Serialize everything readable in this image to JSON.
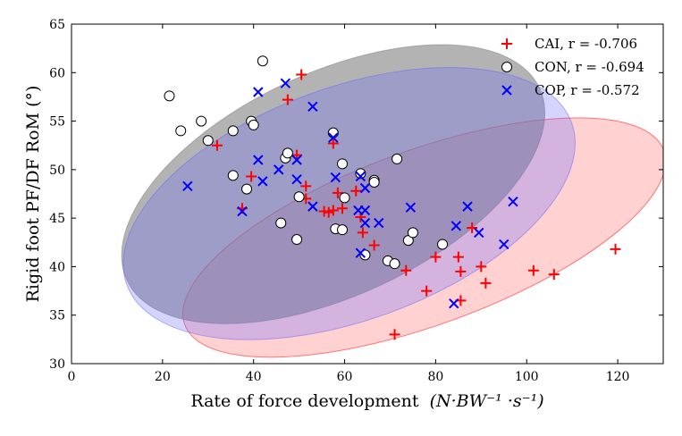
{
  "chart_data": {
    "type": "scatter",
    "xlabel": "Rate of force development",
    "xlabel_units": "(N·BW⁻¹ ·s⁻¹)",
    "ylabel": "Rigid foot PF/DF RoM (°)",
    "xlim": [
      0,
      130
    ],
    "ylim": [
      30,
      65
    ],
    "xticks": [
      0,
      20,
      40,
      60,
      80,
      100,
      120
    ],
    "yticks": [
      30,
      35,
      40,
      45,
      50,
      55,
      60,
      65
    ],
    "legend_position": "top-right",
    "grid": false,
    "series": [
      {
        "name": "CAI, r = -0.706",
        "marker": "plus",
        "color": "#ff0000",
        "ellipse": {
          "center": [
            77.5,
            43
          ],
          "semi_axes": [
            56,
            9
          ],
          "angle_deg": -20,
          "fill": "#ff0000",
          "opacity": 0.18
        },
        "points": [
          [
            32,
            52.5
          ],
          [
            37.5,
            46
          ],
          [
            39.5,
            49.3
          ],
          [
            47.5,
            57.2
          ],
          [
            50.5,
            59.8
          ],
          [
            49.5,
            51.5
          ],
          [
            51.5,
            48.3
          ],
          [
            51.5,
            47
          ],
          [
            55.5,
            45.7
          ],
          [
            56.5,
            45.6
          ],
          [
            57.5,
            52.7
          ],
          [
            57.5,
            45.8
          ],
          [
            58.5,
            47.6
          ],
          [
            59.5,
            46
          ],
          [
            62.5,
            47.8
          ],
          [
            63.5,
            45.1
          ],
          [
            64,
            43.5
          ],
          [
            66.5,
            42.2
          ],
          [
            71,
            33
          ],
          [
            73.5,
            39.6
          ],
          [
            78,
            37.5
          ],
          [
            80,
            41
          ],
          [
            85,
            41
          ],
          [
            85.5,
            39.5
          ],
          [
            85.5,
            36.5
          ],
          [
            88,
            44
          ],
          [
            90,
            40
          ],
          [
            91,
            38.3
          ],
          [
            101.5,
            39.6
          ],
          [
            106,
            39.2
          ],
          [
            119.5,
            41.8
          ]
        ]
      },
      {
        "name": "CON, r = -0.694",
        "marker": "circle",
        "color": "#000000",
        "ellipse": {
          "center": [
            57.5,
            48.5
          ],
          "semi_axes": [
            50,
            11.5
          ],
          "angle_deg": -25,
          "fill": "#808080",
          "opacity": 0.6
        },
        "points": [
          [
            21.5,
            57.6
          ],
          [
            24,
            54
          ],
          [
            28.5,
            55
          ],
          [
            30,
            53
          ],
          [
            35.5,
            54
          ],
          [
            35.5,
            49.4
          ],
          [
            38.5,
            48
          ],
          [
            39.5,
            55
          ],
          [
            40,
            54.6
          ],
          [
            42,
            61.2
          ],
          [
            46,
            44.5
          ],
          [
            47,
            51.2
          ],
          [
            47.5,
            51.7
          ],
          [
            49.5,
            42.8
          ],
          [
            50,
            47.2
          ],
          [
            57.5,
            53.8
          ],
          [
            58,
            43.9
          ],
          [
            59.5,
            43.8
          ],
          [
            59.5,
            50.6
          ],
          [
            60,
            47.1
          ],
          [
            63.5,
            49.6
          ],
          [
            64.5,
            41.2
          ],
          [
            66.5,
            48.9
          ],
          [
            66.5,
            48.7
          ],
          [
            69.5,
            40.6
          ],
          [
            71,
            40.3
          ],
          [
            71.5,
            51.1
          ],
          [
            74,
            42.7
          ],
          [
            75,
            43.5
          ],
          [
            81.5,
            42.3
          ]
        ]
      },
      {
        "name": "COP, r = -0.572",
        "marker": "x",
        "color": "#0000ff",
        "ellipse": {
          "center": [
            61,
            46.5
          ],
          "semi_axes": [
            52,
            12
          ],
          "angle_deg": -20,
          "fill": "#6666ff",
          "opacity": 0.28
        },
        "points": [
          [
            25.5,
            48.3
          ],
          [
            37.5,
            45.7
          ],
          [
            41,
            58
          ],
          [
            41,
            51
          ],
          [
            42,
            48.8
          ],
          [
            45.5,
            50
          ],
          [
            47,
            58.9
          ],
          [
            49.5,
            51
          ],
          [
            49.5,
            49
          ],
          [
            53,
            56.5
          ],
          [
            53,
            46.2
          ],
          [
            57.5,
            53.3
          ],
          [
            58,
            49.2
          ],
          [
            63,
            45.8
          ],
          [
            63.5,
            41.4
          ],
          [
            63.5,
            49.3
          ],
          [
            64.5,
            44.5
          ],
          [
            64.5,
            45.8
          ],
          [
            64.5,
            48.1
          ],
          [
            67.5,
            44.5
          ],
          [
            74.5,
            46.1
          ],
          [
            84,
            36.2
          ],
          [
            84.5,
            44.2
          ],
          [
            87,
            46.2
          ],
          [
            89.5,
            43.5
          ],
          [
            95,
            42.3
          ],
          [
            97,
            46.7
          ]
        ]
      }
    ]
  }
}
